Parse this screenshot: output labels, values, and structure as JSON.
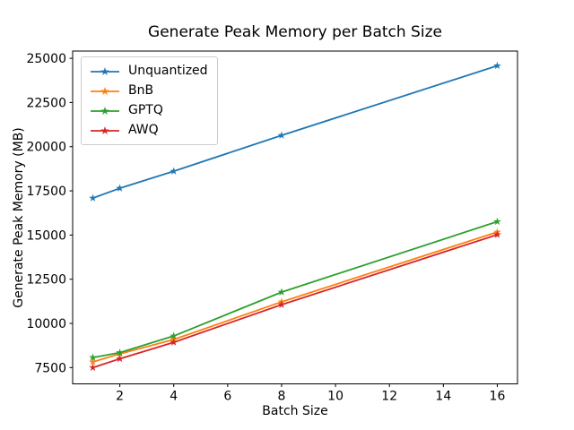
{
  "chart_data": {
    "type": "line",
    "title": "Generate Peak Memory per Batch Size",
    "xlabel": "Batch Size",
    "ylabel": "Generate Peak Memory (MB)",
    "x": [
      1,
      2,
      4,
      8,
      16
    ],
    "series": [
      {
        "name": "Unquantized",
        "color": "#1f77b4",
        "marker": "star",
        "values": [
          17090,
          17650,
          18610,
          20640,
          24580
        ]
      },
      {
        "name": "BnB",
        "color": "#ff7f0e",
        "marker": "star",
        "values": [
          7820,
          8280,
          9090,
          11220,
          15170
        ]
      },
      {
        "name": "GPTQ",
        "color": "#2ca02c",
        "marker": "star",
        "values": [
          8070,
          8350,
          9290,
          11770,
          15760
        ]
      },
      {
        "name": "AWQ",
        "color": "#d62728",
        "marker": "star",
        "values": [
          7500,
          8000,
          8930,
          11060,
          15020
        ]
      }
    ],
    "xticks": [
      2,
      4,
      6,
      8,
      10,
      12,
      14,
      16
    ],
    "yticks": [
      7500,
      10000,
      12500,
      15000,
      17500,
      20000,
      22500,
      25000
    ],
    "xlim": [
      0.25,
      16.75
    ],
    "ylim": [
      6580,
      25410
    ],
    "grid": false,
    "legend_position": "upper left",
    "spine_color": "#000000",
    "background_color": "#ffffff"
  }
}
